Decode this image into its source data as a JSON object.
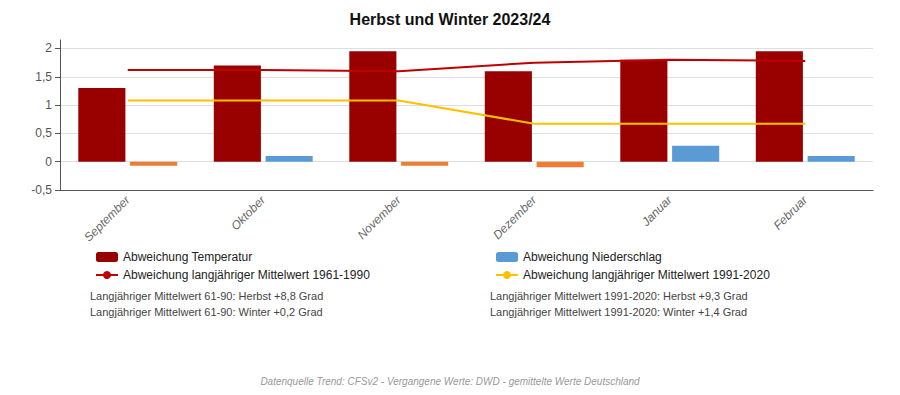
{
  "chart_data": {
    "type": "bar",
    "title": "Herbst und Winter 2023/24",
    "categories": [
      "September",
      "Oktober",
      "November",
      "Dezember",
      "Januar",
      "Februar"
    ],
    "series": [
      {
        "name": "Abweichung Temperatur",
        "type": "bar",
        "color": "#990000",
        "values": [
          1.3,
          1.7,
          1.95,
          1.6,
          1.8,
          1.95
        ]
      },
      {
        "name": "Abweichung Niederschlag",
        "type": "bar",
        "color": "#5B9BD5",
        "colors": [
          "#ED7D31",
          "#5B9BD5",
          "#ED7D31",
          "#ED7D31",
          "#5B9BD5",
          "#5B9BD5"
        ],
        "values": [
          -0.07,
          0.1,
          -0.07,
          -0.1,
          0.28,
          0.1
        ]
      },
      {
        "name": "Abweichung langjähriger Mittelwert 1961-1990",
        "type": "line",
        "color": "#C00000",
        "values": [
          1.62,
          1.62,
          1.6,
          1.75,
          1.8,
          1.78
        ]
      },
      {
        "name": "Abweichung langjähriger Mittelwert 1991-2020",
        "type": "line",
        "color": "#FFC000",
        "values": [
          1.08,
          1.08,
          1.08,
          0.67,
          0.67,
          0.67
        ]
      }
    ],
    "ylim": [
      -0.5,
      2.15
    ],
    "yticks": [
      {
        "value": -0.5,
        "label": "-0,5"
      },
      0,
      {
        "value": 0.5,
        "label": "0,5"
      },
      1,
      {
        "value": 1.5,
        "label": "1,5"
      },
      2
    ],
    "grid": true,
    "legend": "bottom",
    "annotations": [
      "Langjähriger Mittelwert 61-90: Herbst +8,8 Grad",
      "Langjähriger Mittelwert 61-90: Winter +0,2 Grad",
      "Langjähriger Mittelwert 1991-2020: Herbst +9,3 Grad",
      "Langjähriger Mittelwert 1991-2020: Winter +1,4 Grad",
      "Datenquelle Trend: CFSv2 - Vergangene Werte: DWD - gemittelte Werte Deutschland"
    ]
  }
}
